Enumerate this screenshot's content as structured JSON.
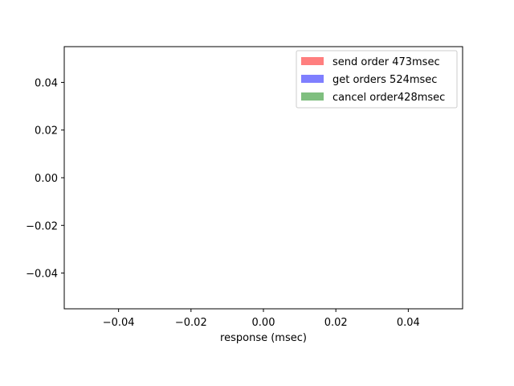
{
  "chart_data": {
    "type": "bar",
    "title": "",
    "xlabel": "response (msec)",
    "ylabel": "",
    "xlim": [
      -0.055,
      0.055
    ],
    "ylim": [
      -0.055,
      0.055
    ],
    "xticks": [
      -0.04,
      -0.02,
      0.0,
      0.02,
      0.04
    ],
    "xtick_labels": [
      "−0.04",
      "−0.02",
      "0.00",
      "0.02",
      "0.04"
    ],
    "yticks": [
      -0.04,
      -0.02,
      0.0,
      0.02,
      0.04
    ],
    "ytick_labels": [
      "−0.04",
      "−0.02",
      "0.00",
      "0.02",
      "0.04"
    ],
    "grid": false,
    "legend_position": "top-right",
    "series": [
      {
        "name": "send order",
        "label": "send order  473msec",
        "color": "#ff7f7f",
        "values": []
      },
      {
        "name": "get orders",
        "label": "get orders  524msec",
        "color": "#7f7fff",
        "values": []
      },
      {
        "name": "cancel order",
        "label": "cancel order428msec",
        "color": "#7fbf7f",
        "values": []
      }
    ]
  }
}
